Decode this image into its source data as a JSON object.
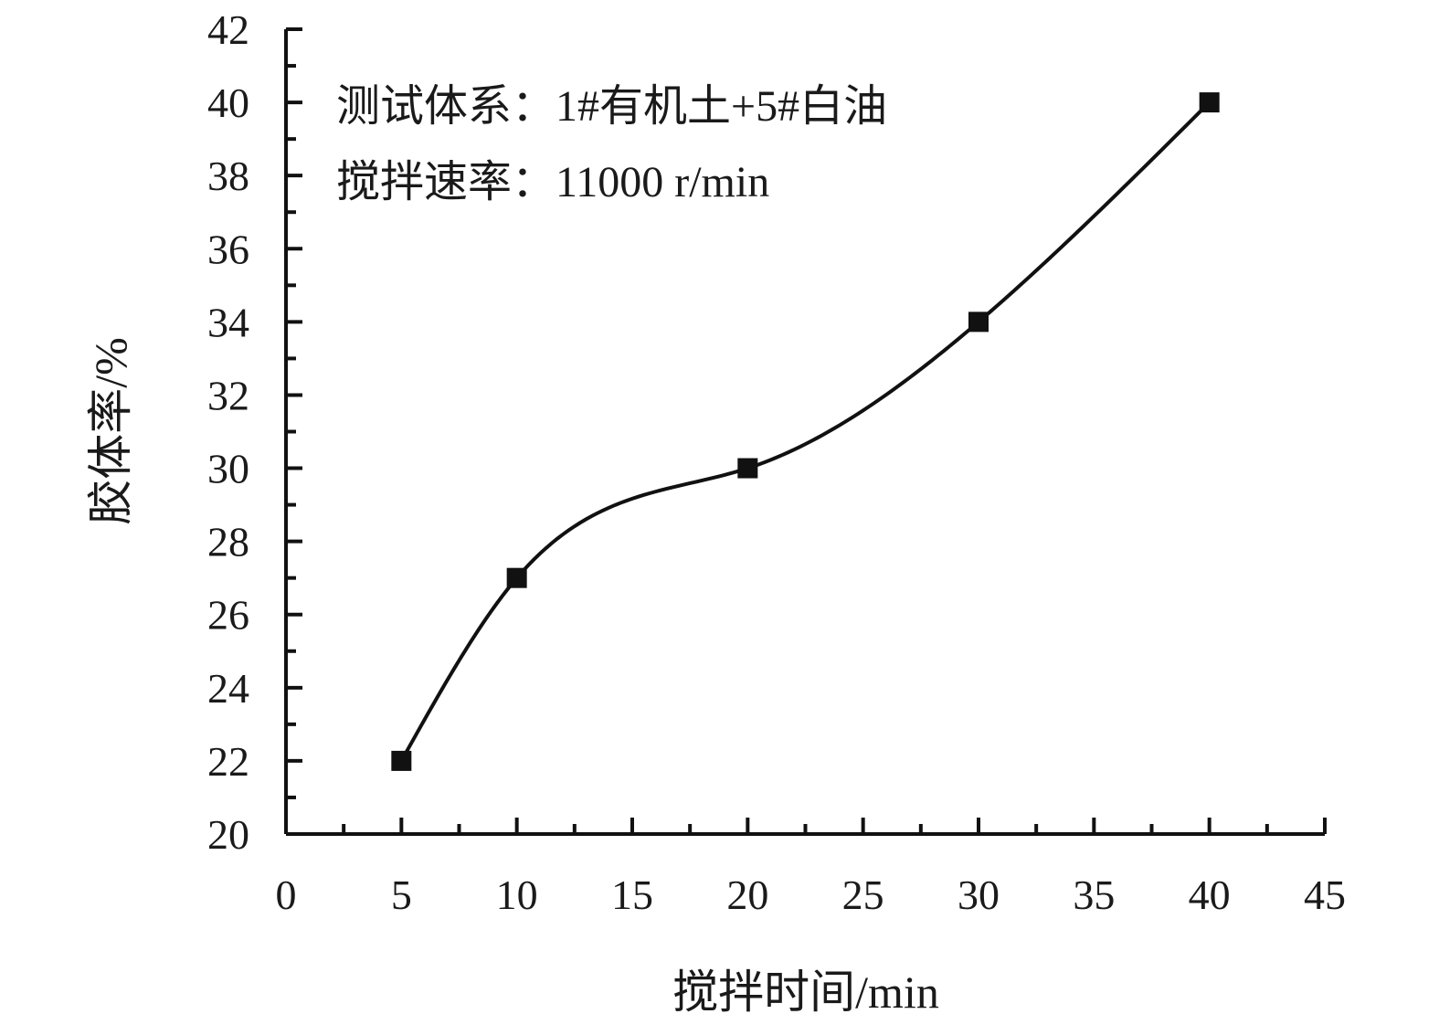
{
  "chart_data": {
    "type": "scatter",
    "title": "",
    "xlabel": "搅拌时间/min",
    "ylabel": "胶体率/%",
    "xlim": [
      0,
      45
    ],
    "ylim": [
      20,
      42
    ],
    "x_ticks": [
      "0",
      "5",
      "10",
      "15",
      "20",
      "25",
      "30",
      "35",
      "40",
      "45"
    ],
    "y_ticks": [
      "20",
      "22",
      "24",
      "26",
      "28",
      "30",
      "32",
      "34",
      "36",
      "38",
      "40",
      "42"
    ],
    "grid": false,
    "legend": "none",
    "annotations": [
      "测试体系：1#有机土+5#白油",
      "搅拌速率：11000 r/min"
    ],
    "series": [
      {
        "marker": "square",
        "x": [
          5,
          10,
          20,
          30,
          40
        ],
        "y": [
          22,
          27,
          30,
          34,
          40
        ]
      }
    ],
    "trendline": "smooth fit curve through points",
    "colors": {
      "ink": "#111111"
    }
  }
}
